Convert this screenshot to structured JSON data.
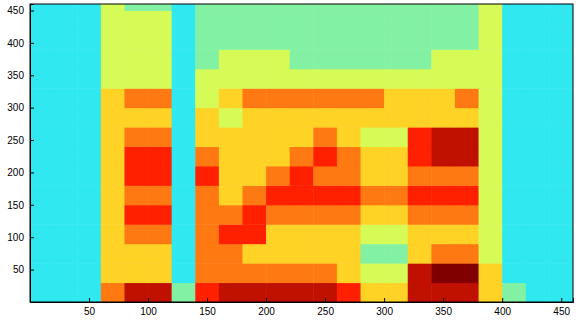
{
  "chart_data": {
    "type": "heatmap",
    "xlim": [
      0,
      460
    ],
    "ylim": [
      0,
      460
    ],
    "xticks": [
      50,
      100,
      150,
      200,
      250,
      300,
      350,
      400,
      450
    ],
    "yticks": [
      50,
      100,
      150,
      200,
      250,
      300,
      350,
      400,
      450
    ],
    "x_bins": [
      0,
      20,
      40,
      60,
      80,
      100,
      120,
      140,
      160,
      180,
      200,
      220,
      240,
      260,
      280,
      300,
      320,
      340,
      360,
      380,
      400,
      420,
      440,
      460
    ],
    "y_bins": [
      0,
      30,
      60,
      90,
      120,
      150,
      180,
      210,
      240,
      270,
      300,
      330,
      360,
      390,
      420,
      450,
      460
    ],
    "color_range": [
      0,
      10
    ],
    "values": [
      [
        3,
        3,
        3,
        7,
        9,
        9,
        4,
        8,
        9,
        9,
        9,
        9,
        9,
        8,
        6,
        6,
        9,
        9,
        9,
        6,
        4,
        3,
        3
      ],
      [
        3,
        3,
        3,
        6,
        6,
        6,
        3,
        7,
        7,
        7,
        7,
        7,
        7,
        6,
        5,
        5,
        9,
        10,
        10,
        6,
        3,
        3,
        3
      ],
      [
        3,
        3,
        3,
        6,
        6,
        6,
        3,
        7,
        7,
        6,
        6,
        6,
        6,
        6,
        4,
        4,
        6,
        7,
        7,
        5,
        3,
        3,
        3
      ],
      [
        3,
        3,
        3,
        6,
        7,
        7,
        3,
        7,
        8,
        8,
        6,
        6,
        6,
        6,
        5,
        5,
        6,
        6,
        6,
        5,
        3,
        3,
        3
      ],
      [
        3,
        3,
        3,
        6,
        8,
        8,
        3,
        7,
        7,
        8,
        7,
        7,
        7,
        7,
        6,
        6,
        7,
        7,
        7,
        5,
        3,
        3,
        3
      ],
      [
        3,
        3,
        3,
        6,
        7,
        7,
        3,
        7,
        6,
        7,
        8,
        8,
        8,
        8,
        7,
        7,
        8,
        8,
        8,
        5,
        3,
        3,
        3
      ],
      [
        3,
        3,
        3,
        6,
        8,
        8,
        3,
        8,
        6,
        6,
        7,
        8,
        7,
        7,
        6,
        6,
        7,
        7,
        7,
        5,
        3,
        3,
        3
      ],
      [
        3,
        3,
        3,
        6,
        8,
        8,
        3,
        7,
        6,
        6,
        6,
        7,
        8,
        7,
        6,
        6,
        8,
        9,
        9,
        5,
        3,
        3,
        3
      ],
      [
        3,
        3,
        3,
        6,
        7,
        7,
        3,
        6,
        6,
        6,
        6,
        6,
        7,
        6,
        5,
        5,
        8,
        9,
        9,
        5,
        3,
        3,
        3
      ],
      [
        3,
        3,
        3,
        6,
        6,
        6,
        3,
        6,
        5,
        6,
        6,
        6,
        6,
        6,
        6,
        6,
        6,
        6,
        6,
        5,
        3,
        3,
        3
      ],
      [
        3,
        3,
        3,
        6,
        7,
        7,
        3,
        5,
        6,
        7,
        7,
        7,
        7,
        7,
        7,
        6,
        6,
        6,
        7,
        5,
        3,
        3,
        3
      ],
      [
        3,
        3,
        3,
        5,
        5,
        5,
        3,
        5,
        5,
        5,
        5,
        5,
        5,
        5,
        5,
        5,
        5,
        5,
        5,
        5,
        3,
        3,
        3
      ],
      [
        3,
        3,
        3,
        5,
        5,
        5,
        3,
        4,
        5,
        5,
        5,
        4,
        4,
        4,
        4,
        4,
        4,
        5,
        5,
        5,
        3,
        3,
        3
      ],
      [
        3,
        3,
        3,
        5,
        5,
        5,
        3,
        4,
        4,
        4,
        4,
        4,
        4,
        4,
        4,
        4,
        4,
        4,
        4,
        5,
        3,
        3,
        3
      ],
      [
        3,
        3,
        3,
        5,
        5,
        5,
        3,
        4,
        4,
        4,
        4,
        4,
        4,
        4,
        4,
        4,
        4,
        4,
        4,
        5,
        3,
        3,
        3
      ],
      [
        3,
        3,
        3,
        5,
        4,
        4,
        3,
        4,
        4,
        4,
        4,
        4,
        4,
        4,
        4,
        4,
        4,
        4,
        4,
        5,
        3,
        3,
        3
      ]
    ]
  }
}
